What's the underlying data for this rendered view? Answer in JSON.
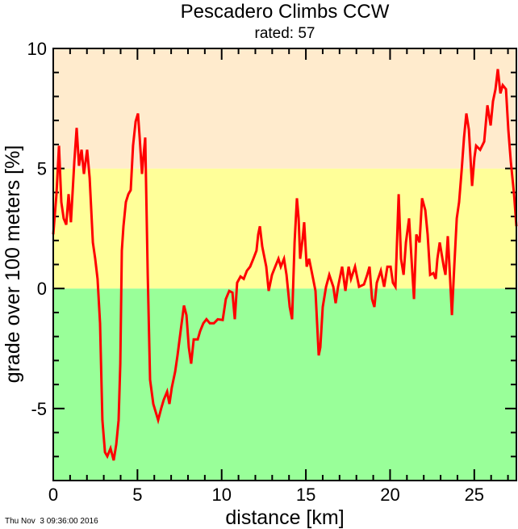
{
  "chart_data": {
    "type": "line",
    "title": "Pescadero Climbs CCW",
    "subtitle": "rated: 57",
    "xlabel": "distance [km]",
    "ylabel": "grade over 100 meters [%]",
    "timestamp": "Thu Nov  3 09:36:00 2016",
    "xlim": [
      0,
      27.5
    ],
    "ylim": [
      -8,
      10
    ],
    "x_major_ticks": [
      0,
      5,
      10,
      15,
      20,
      25
    ],
    "x_minor_step": 1,
    "y_major_ticks": [
      -5,
      0,
      5,
      10
    ],
    "y_minor_step": 1,
    "grid": false,
    "bands": [
      {
        "from": -8,
        "to": 0,
        "color": "#99ff99"
      },
      {
        "from": 0,
        "to": 5,
        "color": "#ffff99"
      },
      {
        "from": 5,
        "to": 10,
        "color": "#ffebcd"
      }
    ],
    "line_color": "#ff0000",
    "series": [
      {
        "points": [
          [
            0.0,
            2.25
          ],
          [
            0.19,
            3.93
          ],
          [
            0.34,
            5.95
          ],
          [
            0.48,
            3.6
          ],
          [
            0.62,
            2.92
          ],
          [
            0.77,
            2.66
          ],
          [
            0.91,
            3.93
          ],
          [
            1.05,
            2.76
          ],
          [
            1.25,
            5.28
          ],
          [
            1.39,
            6.69
          ],
          [
            1.53,
            5.11
          ],
          [
            1.68,
            5.78
          ],
          [
            1.82,
            4.77
          ],
          [
            2.01,
            5.78
          ],
          [
            2.16,
            4.61
          ],
          [
            2.35,
            1.92
          ],
          [
            2.49,
            1.24
          ],
          [
            2.63,
            0.4
          ],
          [
            2.78,
            -1.45
          ],
          [
            2.92,
            -5.48
          ],
          [
            3.07,
            -6.82
          ],
          [
            3.21,
            -6.99
          ],
          [
            3.4,
            -6.66
          ],
          [
            3.59,
            -7.16
          ],
          [
            3.74,
            -6.49
          ],
          [
            3.88,
            -5.48
          ],
          [
            3.98,
            -3.13
          ],
          [
            4.07,
            1.58
          ],
          [
            4.17,
            2.59
          ],
          [
            4.31,
            3.6
          ],
          [
            4.46,
            3.93
          ],
          [
            4.6,
            4.1
          ],
          [
            4.74,
            5.95
          ],
          [
            4.89,
            6.96
          ],
          [
            5.03,
            7.29
          ],
          [
            5.13,
            6.29
          ],
          [
            5.27,
            4.77
          ],
          [
            5.37,
            5.61
          ],
          [
            5.46,
            6.29
          ],
          [
            5.61,
            0.57
          ],
          [
            5.75,
            -3.8
          ],
          [
            5.94,
            -4.81
          ],
          [
            6.23,
            -5.48
          ],
          [
            6.42,
            -4.97
          ],
          [
            6.56,
            -4.64
          ],
          [
            6.76,
            -4.3
          ],
          [
            6.9,
            -4.81
          ],
          [
            7.04,
            -4.13
          ],
          [
            7.24,
            -3.46
          ],
          [
            7.38,
            -2.79
          ],
          [
            7.62,
            -1.45
          ],
          [
            7.76,
            -0.71
          ],
          [
            7.91,
            -1.11
          ],
          [
            8.05,
            -2.45
          ],
          [
            8.19,
            -3.13
          ],
          [
            8.34,
            -2.12
          ],
          [
            8.58,
            -2.12
          ],
          [
            8.72,
            -1.78
          ],
          [
            8.91,
            -1.45
          ],
          [
            9.1,
            -1.28
          ],
          [
            9.3,
            -1.45
          ],
          [
            9.54,
            -1.45
          ],
          [
            9.77,
            -1.28
          ],
          [
            10.06,
            -1.31
          ],
          [
            10.25,
            -0.44
          ],
          [
            10.45,
            -0.1
          ],
          [
            10.64,
            -0.17
          ],
          [
            10.78,
            -1.28
          ],
          [
            10.92,
            0.24
          ],
          [
            11.12,
            0.5
          ],
          [
            11.31,
            0.4
          ],
          [
            11.5,
            0.74
          ],
          [
            11.69,
            0.91
          ],
          [
            11.88,
            1.24
          ],
          [
            12.07,
            1.58
          ],
          [
            12.17,
            2.25
          ],
          [
            12.27,
            2.59
          ],
          [
            12.41,
            1.75
          ],
          [
            12.65,
            0.91
          ],
          [
            12.79,
            -0.1
          ],
          [
            12.99,
            0.57
          ],
          [
            13.18,
            0.91
          ],
          [
            13.37,
            1.24
          ],
          [
            13.51,
            0.91
          ],
          [
            13.7,
            1.24
          ],
          [
            13.85,
            0.57
          ],
          [
            14.04,
            -0.77
          ],
          [
            14.18,
            -1.28
          ],
          [
            14.33,
            1.92
          ],
          [
            14.47,
            3.76
          ],
          [
            14.57,
            2.92
          ],
          [
            14.66,
            1.24
          ],
          [
            14.81,
            2.08
          ],
          [
            14.9,
            2.76
          ],
          [
            15.05,
            0.91
          ],
          [
            15.19,
            1.24
          ],
          [
            15.43,
            0.4
          ],
          [
            15.57,
            -0.1
          ],
          [
            15.76,
            -2.79
          ],
          [
            15.86,
            -2.45
          ],
          [
            16.0,
            -0.77
          ],
          [
            16.2,
            0.07
          ],
          [
            16.39,
            0.57
          ],
          [
            16.63,
            0.07
          ],
          [
            16.77,
            -0.61
          ],
          [
            16.91,
            0.07
          ],
          [
            17.15,
            0.91
          ],
          [
            17.35,
            -0.1
          ],
          [
            17.54,
            0.91
          ],
          [
            17.68,
            0.4
          ],
          [
            17.92,
            0.91
          ],
          [
            18.16,
            0.07
          ],
          [
            18.45,
            0.17
          ],
          [
            18.64,
            0.57
          ],
          [
            18.78,
            0.91
          ],
          [
            18.93,
            -0.44
          ],
          [
            19.07,
            -0.77
          ],
          [
            19.21,
            0.24
          ],
          [
            19.45,
            0.74
          ],
          [
            19.65,
            0.07
          ],
          [
            19.84,
            0.91
          ],
          [
            20.03,
            0.91
          ],
          [
            20.17,
            0.24
          ],
          [
            20.32,
            0.07
          ],
          [
            20.51,
            3.93
          ],
          [
            20.65,
            1.24
          ],
          [
            20.8,
            0.57
          ],
          [
            20.94,
            1.92
          ],
          [
            21.13,
            2.92
          ],
          [
            21.27,
            1.24
          ],
          [
            21.42,
            -0.44
          ],
          [
            21.56,
            2.25
          ],
          [
            21.75,
            1.92
          ],
          [
            21.9,
            3.76
          ],
          [
            22.09,
            3.26
          ],
          [
            22.23,
            2.25
          ],
          [
            22.38,
            0.57
          ],
          [
            22.57,
            0.64
          ],
          [
            22.71,
            0.4
          ],
          [
            22.81,
            1.24
          ],
          [
            22.95,
            1.92
          ],
          [
            23.19,
            0.91
          ],
          [
            23.29,
            0.57
          ],
          [
            23.43,
            2.18
          ],
          [
            23.53,
            0.91
          ],
          [
            23.67,
            -1.11
          ],
          [
            23.81,
            0.91
          ],
          [
            23.96,
            2.92
          ],
          [
            24.1,
            3.6
          ],
          [
            24.25,
            4.94
          ],
          [
            24.39,
            6.29
          ],
          [
            24.53,
            7.29
          ],
          [
            24.68,
            6.62
          ],
          [
            24.87,
            4.27
          ],
          [
            25.01,
            5.45
          ],
          [
            25.11,
            5.95
          ],
          [
            25.35,
            5.78
          ],
          [
            25.59,
            6.12
          ],
          [
            25.78,
            7.63
          ],
          [
            25.97,
            6.79
          ],
          [
            26.11,
            7.8
          ],
          [
            26.26,
            8.3
          ],
          [
            26.4,
            9.14
          ],
          [
            26.55,
            8.13
          ],
          [
            26.69,
            8.47
          ],
          [
            26.88,
            8.3
          ],
          [
            27.02,
            6.62
          ],
          [
            27.17,
            5.28
          ],
          [
            27.36,
            3.93
          ],
          [
            27.5,
            2.59
          ]
        ]
      }
    ]
  }
}
